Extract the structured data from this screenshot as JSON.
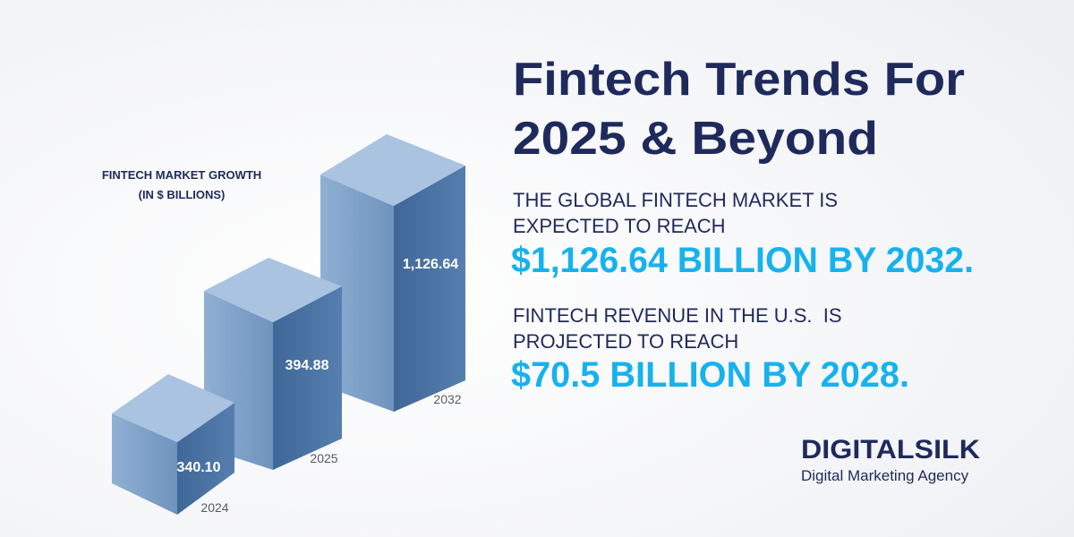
{
  "headline": {
    "lines": [
      "Fintech Trends For",
      "2025 & Beyond"
    ]
  },
  "chart": {
    "title_lines": [
      "FINTECH MARKET GROWTH",
      "(IN $ BILLIONS)"
    ],
    "bars": [
      {
        "value_label": "340.10",
        "year": "2024"
      },
      {
        "value_label": "394.88",
        "year": "2025"
      },
      {
        "value_label": "1,126.64",
        "year": "2032"
      }
    ]
  },
  "stats": [
    {
      "lines": [
        "THE GLOBAL FINTECH MARKET IS",
        "EXPECTED TO REACH"
      ],
      "highlight": "$1,126.64 BILLION BY 2032."
    },
    {
      "lines": [
        "FINTECH REVENUE IN THE U.S.  IS",
        "PROJECTED TO REACH"
      ],
      "highlight": "$70.5 BILLION BY 2028."
    }
  ],
  "brand": {
    "name": "DIGITALSILK",
    "tagline": "Digital Marketing Agency"
  }
}
